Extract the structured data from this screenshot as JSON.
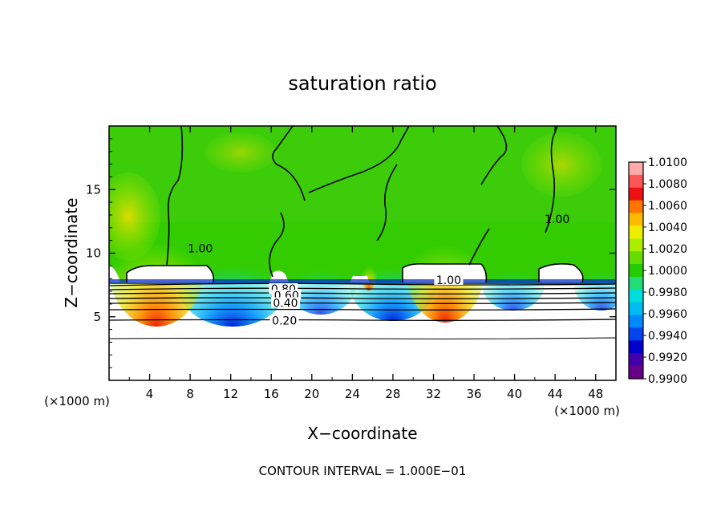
{
  "chart_data": {
    "type": "heatmap",
    "title": "saturation ratio",
    "xlabel": "X−coordinate",
    "ylabel": "Z−coordinate",
    "x_unit": "(×1000 m)",
    "z_unit": "(×1000 m)",
    "xlim": [
      0,
      50
    ],
    "ylim": [
      0,
      20
    ],
    "x_ticks": [
      "4",
      "8",
      "12",
      "16",
      "20",
      "24",
      "28",
      "32",
      "36",
      "40",
      "44",
      "48"
    ],
    "x_tick_values": [
      4,
      8,
      12,
      16,
      20,
      24,
      28,
      32,
      36,
      40,
      44,
      48
    ],
    "y_ticks": [
      "5",
      "10",
      "15"
    ],
    "y_tick_values": [
      5,
      10,
      15
    ],
    "colorbar": {
      "labels": [
        "1.0100",
        "1.0080",
        "1.0060",
        "1.0040",
        "1.0020",
        "1.0000",
        "0.9980",
        "0.9960",
        "0.9940",
        "0.9920",
        "0.9900"
      ],
      "colors": [
        "#ffaaaa",
        "#ff5555",
        "#ee1111",
        "#ff7700",
        "#ffbb00",
        "#eeee00",
        "#aaee00",
        "#66dd00",
        "#22cc00",
        "#22dd77",
        "#00dddd",
        "#00bbee",
        "#0088ff",
        "#0044ee",
        "#0000cc",
        "#4400aa",
        "#660088"
      ]
    },
    "contour_labels": [
      {
        "text": "1.00",
        "x": 9.0,
        "z": 10.2
      },
      {
        "text": "1.00",
        "x": 33.5,
        "z": 7.7
      },
      {
        "text": "1.00",
        "x": 44.2,
        "z": 12.5
      },
      {
        "text": "0.80",
        "x": 17.2,
        "z": 7.0
      },
      {
        "text": "0.60",
        "x": 17.5,
        "z": 6.5
      },
      {
        "text": "0.40",
        "x": 17.4,
        "z": 5.9
      },
      {
        "text": "0.20",
        "x": 17.3,
        "z": 4.5
      }
    ],
    "contour_interval_label": "CONTOUR INTERVAL = 1.000E−01"
  }
}
